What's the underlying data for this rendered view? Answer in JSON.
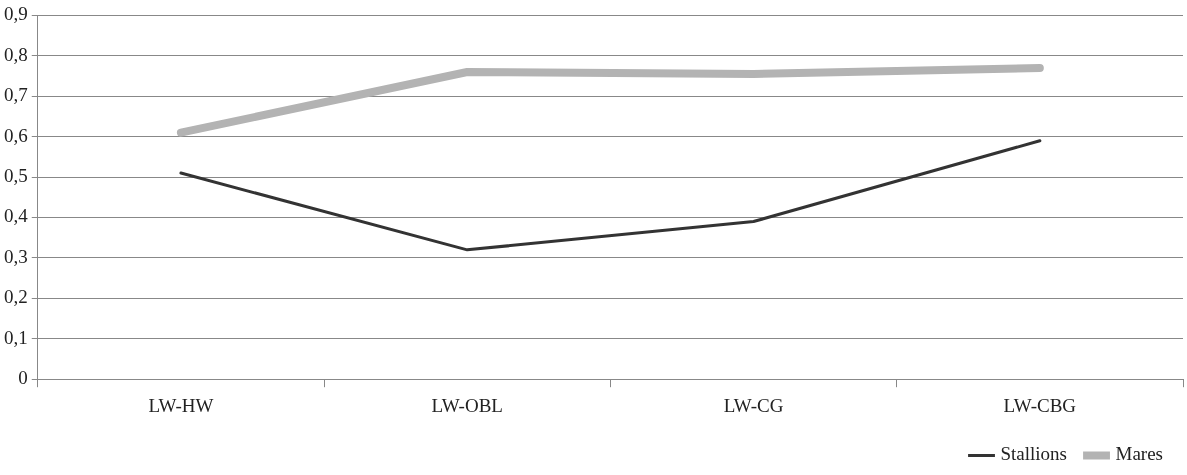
{
  "chart_data": {
    "type": "line",
    "categories": [
      "LW-HW",
      "LW-OBL",
      "LW-CG",
      "LW-CBG"
    ],
    "series": [
      {
        "name": "Stallions",
        "color": "#333333",
        "values": [
          0.51,
          0.32,
          0.39,
          0.59
        ]
      },
      {
        "name": "Mares",
        "color": "#b3b3b3",
        "values": [
          0.61,
          0.76,
          0.755,
          0.77
        ]
      }
    ],
    "ylim": [
      0,
      0.9
    ],
    "yticks": [
      0,
      {
        "value": 0.1,
        "label": "0,1"
      },
      {
        "value": 0.2,
        "label": "0,2"
      },
      {
        "value": 0.3,
        "label": "0,3"
      },
      {
        "value": 0.4,
        "label": "0,4"
      },
      {
        "value": 0.5,
        "label": "0,5"
      },
      {
        "value": 0.6,
        "label": "0,6"
      },
      {
        "value": 0.7,
        "label": "0,7"
      },
      {
        "value": 0.8,
        "label": "0,8"
      },
      {
        "value": 0.9,
        "label": "0,9"
      }
    ],
    "grid": "y",
    "legend": "bottom right",
    "marker": "none",
    "line_style": "solid"
  }
}
